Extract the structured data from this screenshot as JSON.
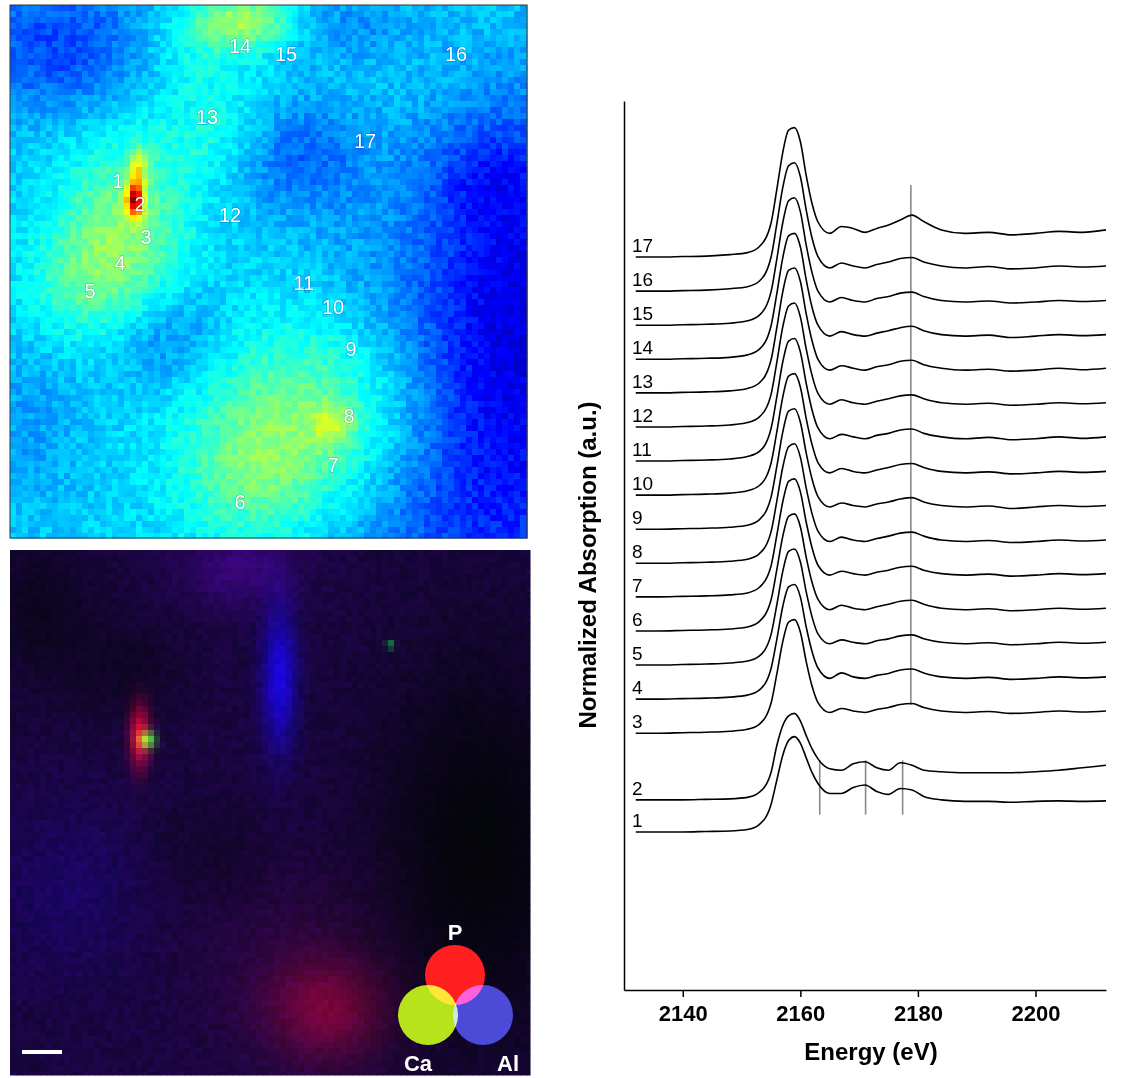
{
  "chart_data": {
    "type": "line",
    "xlabel": "Energy (eV)",
    "ylabel": "Normalized Absorption (a.u.)",
    "xlim": [
      2130,
      2212
    ],
    "xticks": [
      2140,
      2160,
      2180,
      2200
    ],
    "ylim": [
      0,
      18
    ],
    "tick_labels": "x",
    "grid": false,
    "color": "#000000",
    "x": [
      2132,
      2136,
      2140,
      2144,
      2148,
      2151,
      2153,
      2155,
      2156,
      2157,
      2158,
      2159,
      2160,
      2161,
      2162,
      2163,
      2165,
      2167,
      2169,
      2171,
      2173,
      2175,
      2177,
      2179,
      2181,
      2184,
      2188,
      2192,
      2196,
      2200,
      2204,
      2208,
      2212
    ],
    "series": [
      {
        "name": "1",
        "values": [
          3.2,
          3.2,
          3.2,
          3.21,
          3.22,
          3.25,
          3.35,
          3.75,
          4.25,
          4.75,
          5.05,
          5.13,
          5.0,
          4.7,
          4.4,
          4.18,
          3.98,
          3.98,
          4.1,
          4.15,
          4.02,
          3.96,
          4.08,
          4.05,
          3.92,
          3.85,
          3.82,
          3.82,
          3.8,
          3.82,
          3.83,
          3.82,
          3.83
        ]
      },
      {
        "name": "2",
        "values": [
          3.85,
          3.85,
          3.85,
          3.86,
          3.87,
          3.9,
          4.0,
          4.4,
          4.95,
          5.35,
          5.55,
          5.6,
          5.45,
          5.15,
          4.88,
          4.68,
          4.48,
          4.45,
          4.58,
          4.62,
          4.5,
          4.45,
          4.6,
          4.55,
          4.45,
          4.42,
          4.4,
          4.4,
          4.4,
          4.42,
          4.45,
          4.5,
          4.55
        ]
      },
      {
        "name": "3",
        "values": [
          5.2,
          5.2,
          5.21,
          5.22,
          5.24,
          5.28,
          5.38,
          5.8,
          6.4,
          7.05,
          7.45,
          7.5,
          7.25,
          6.65,
          6.15,
          5.82,
          5.62,
          5.7,
          5.65,
          5.62,
          5.68,
          5.72,
          5.78,
          5.8,
          5.72,
          5.65,
          5.62,
          5.64,
          5.6,
          5.62,
          5.65,
          5.63,
          5.65
        ]
      },
      {
        "name": "4",
        "values": [
          5.89,
          5.89,
          5.9,
          5.91,
          5.93,
          5.97,
          6.07,
          6.5,
          7.1,
          7.76,
          8.16,
          8.21,
          7.96,
          7.35,
          6.85,
          6.52,
          6.31,
          6.42,
          6.34,
          6.31,
          6.37,
          6.41,
          6.48,
          6.5,
          6.42,
          6.34,
          6.31,
          6.33,
          6.29,
          6.31,
          6.34,
          6.32,
          6.34
        ]
      },
      {
        "name": "5",
        "values": [
          6.58,
          6.58,
          6.59,
          6.6,
          6.62,
          6.66,
          6.76,
          7.19,
          7.8,
          8.47,
          8.88,
          8.93,
          8.67,
          8.06,
          7.55,
          7.21,
          7.01,
          7.09,
          7.04,
          7.01,
          7.07,
          7.11,
          7.17,
          7.19,
          7.11,
          7.04,
          7.01,
          7.03,
          6.99,
          7.01,
          7.04,
          7.02,
          7.04
        ]
      },
      {
        "name": "6",
        "values": [
          7.27,
          7.27,
          7.28,
          7.29,
          7.31,
          7.35,
          7.46,
          7.89,
          8.51,
          9.18,
          9.59,
          9.64,
          9.38,
          8.76,
          8.25,
          7.91,
          7.7,
          7.79,
          7.73,
          7.7,
          7.76,
          7.81,
          7.87,
          7.89,
          7.81,
          7.73,
          7.7,
          7.72,
          7.68,
          7.7,
          7.73,
          7.71,
          7.73
        ]
      },
      {
        "name": "7",
        "values": [
          7.96,
          7.96,
          7.97,
          7.98,
          8.0,
          8.04,
          8.15,
          8.58,
          9.21,
          9.88,
          10.3,
          10.35,
          10.09,
          9.47,
          8.95,
          8.6,
          8.4,
          8.48,
          8.43,
          8.4,
          8.46,
          8.5,
          8.56,
          8.58,
          8.5,
          8.43,
          8.4,
          8.42,
          8.38,
          8.4,
          8.43,
          8.41,
          8.43
        ]
      },
      {
        "name": "8",
        "values": [
          8.64,
          8.64,
          8.65,
          8.66,
          8.68,
          8.72,
          8.83,
          9.27,
          9.9,
          10.58,
          11.0,
          11.06,
          10.79,
          10.16,
          9.64,
          9.29,
          9.08,
          9.17,
          9.11,
          9.08,
          9.14,
          9.19,
          9.25,
          9.27,
          9.19,
          9.11,
          9.08,
          9.1,
          9.06,
          9.08,
          9.11,
          9.09,
          9.11
        ]
      },
      {
        "name": "9",
        "values": [
          9.33,
          9.33,
          9.34,
          9.35,
          9.37,
          9.41,
          9.52,
          9.97,
          10.6,
          11.29,
          11.72,
          11.77,
          11.5,
          10.87,
          10.34,
          9.99,
          9.78,
          9.86,
          9.81,
          9.78,
          9.84,
          9.88,
          9.94,
          9.97,
          9.88,
          9.81,
          9.78,
          9.8,
          9.75,
          9.78,
          9.81,
          9.79,
          9.81
        ]
      },
      {
        "name": "10",
        "values": [
          10.02,
          10.02,
          10.03,
          10.04,
          10.06,
          10.11,
          10.21,
          10.66,
          11.3,
          12.0,
          12.43,
          12.48,
          12.21,
          11.57,
          11.04,
          10.68,
          10.47,
          10.56,
          10.5,
          10.47,
          10.53,
          10.58,
          10.64,
          10.66,
          10.58,
          10.5,
          10.47,
          10.49,
          10.45,
          10.47,
          10.5,
          10.48,
          10.5
        ]
      },
      {
        "name": "11",
        "values": [
          10.71,
          10.71,
          10.72,
          10.73,
          10.75,
          10.8,
          10.9,
          11.36,
          12.01,
          12.71,
          13.14,
          13.19,
          12.92,
          12.28,
          11.74,
          11.38,
          11.16,
          11.25,
          11.2,
          11.16,
          11.23,
          11.27,
          11.34,
          11.36,
          11.27,
          11.2,
          11.16,
          11.19,
          11.14,
          11.16,
          11.2,
          11.17,
          11.2
        ]
      },
      {
        "name": "12",
        "values": [
          11.4,
          11.4,
          11.41,
          11.42,
          11.44,
          11.49,
          11.6,
          12.05,
          12.71,
          13.42,
          13.85,
          13.91,
          13.63,
          12.98,
          12.44,
          12.08,
          11.86,
          11.95,
          11.89,
          11.86,
          11.92,
          11.97,
          12.03,
          12.05,
          11.97,
          11.89,
          11.86,
          11.88,
          11.84,
          11.86,
          11.89,
          11.87,
          11.89
        ]
      },
      {
        "name": "13",
        "values": [
          12.09,
          12.09,
          12.1,
          12.11,
          12.13,
          12.18,
          12.29,
          12.75,
          13.41,
          14.13,
          14.57,
          14.62,
          14.35,
          13.69,
          13.14,
          12.77,
          12.55,
          12.64,
          12.59,
          12.55,
          12.62,
          12.66,
          12.73,
          12.75,
          12.66,
          12.59,
          12.55,
          12.57,
          12.53,
          12.55,
          12.59,
          12.56,
          12.59
        ]
      },
      {
        "name": "14",
        "values": [
          12.77,
          12.77,
          12.78,
          12.79,
          12.81,
          12.86,
          12.97,
          13.44,
          14.1,
          14.82,
          15.27,
          15.32,
          15.05,
          14.38,
          13.82,
          13.46,
          13.24,
          13.33,
          13.27,
          13.24,
          13.3,
          13.35,
          13.41,
          13.44,
          13.35,
          13.27,
          13.24,
          13.26,
          13.21,
          13.24,
          13.27,
          13.25,
          13.27
        ]
      },
      {
        "name": "15",
        "values": [
          13.46,
          13.46,
          13.47,
          13.48,
          13.5,
          13.55,
          13.66,
          14.13,
          14.8,
          15.53,
          15.98,
          16.04,
          15.76,
          15.08,
          14.52,
          14.15,
          13.93,
          14.02,
          13.96,
          13.93,
          14.0,
          14.04,
          14.11,
          14.13,
          14.04,
          13.96,
          13.93,
          13.95,
          13.91,
          13.93,
          13.96,
          13.94,
          13.96
        ]
      },
      {
        "name": "16",
        "values": [
          14.15,
          14.15,
          14.16,
          14.17,
          14.2,
          14.24,
          14.35,
          14.83,
          15.51,
          16.24,
          16.69,
          16.75,
          16.47,
          15.79,
          15.22,
          14.85,
          14.62,
          14.72,
          14.66,
          14.62,
          14.69,
          14.74,
          14.81,
          14.83,
          14.74,
          14.66,
          14.62,
          14.65,
          14.6,
          14.62,
          14.66,
          14.64,
          14.66
        ]
      },
      {
        "name": "17",
        "values": [
          14.84,
          14.84,
          14.85,
          14.86,
          14.89,
          14.93,
          15.05,
          15.52,
          16.21,
          16.95,
          17.41,
          17.46,
          17.18,
          16.49,
          15.92,
          15.55,
          15.32,
          15.46,
          15.42,
          15.34,
          15.42,
          15.49,
          15.59,
          15.69,
          15.56,
          15.39,
          15.32,
          15.34,
          15.29,
          15.32,
          15.36,
          15.34,
          15.39
        ]
      }
    ],
    "reference_lines": [
      {
        "x": 2163.3,
        "y_from": 3.55,
        "y_to": 4.65
      },
      {
        "x": 2171.1,
        "y_from": 3.55,
        "y_to": 4.65
      },
      {
        "x": 2177.4,
        "y_from": 3.55,
        "y_to": 4.65
      },
      {
        "x": 2178.8,
        "y_from": 5.77,
        "y_to": 16.3
      }
    ]
  },
  "maps": {
    "spot_labels": [
      "1",
      "2",
      "3",
      "4",
      "5",
      "6",
      "7",
      "8",
      "9",
      "10",
      "11",
      "12",
      "13",
      "14",
      "15",
      "16",
      "17"
    ],
    "element_legend": [
      {
        "label": "P",
        "color": "#ff1f1f"
      },
      {
        "label": "Ca",
        "color": "#b8e31c"
      },
      {
        "label": "Al",
        "color": "#4b4bd8"
      }
    ]
  }
}
